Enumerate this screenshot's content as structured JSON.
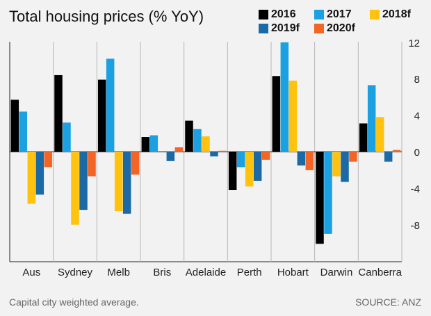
{
  "title": "Total housing prices (% YoY)",
  "footnote": "Capital city weighted average.",
  "source": "SOURCE: ANZ",
  "chart_data": {
    "type": "bar",
    "title": "Total housing prices (% YoY)",
    "categories": [
      "Aus",
      "Sydney",
      "Melb",
      "Bris",
      "Adelaide",
      "Perth",
      "Hobart",
      "Darwin",
      "Canberra"
    ],
    "series": [
      {
        "name": "2016",
        "color": "#000000",
        "values": [
          5.7,
          8.4,
          7.9,
          1.6,
          3.4,
          -4.2,
          8.3,
          -10.1,
          3.1
        ]
      },
      {
        "name": "2017",
        "color": "#1ba1e2",
        "values": [
          4.4,
          3.2,
          10.2,
          1.8,
          2.5,
          -1.7,
          12.0,
          -9.0,
          7.3
        ]
      },
      {
        "name": "2018f",
        "color": "#ffc20e",
        "values": [
          -5.7,
          -8.0,
          -6.5,
          0.0,
          1.7,
          -3.8,
          7.8,
          -2.7,
          3.8
        ]
      },
      {
        "name": "2019f",
        "color": "#1b6aa5",
        "values": [
          -4.7,
          -6.4,
          -6.8,
          -1.0,
          -0.5,
          -3.2,
          -1.5,
          -3.3,
          -1.1
        ]
      },
      {
        "name": "2020f",
        "color": "#f26524",
        "values": [
          -1.7,
          -2.7,
          -2.5,
          0.5,
          0.1,
          -0.9,
          -2.0,
          -1.1,
          0.2
        ]
      }
    ],
    "yticks": [
      12,
      8,
      4,
      0,
      -4,
      -8
    ],
    "ylim": [
      -12,
      12
    ],
    "grid": true,
    "legend": "top-right"
  }
}
